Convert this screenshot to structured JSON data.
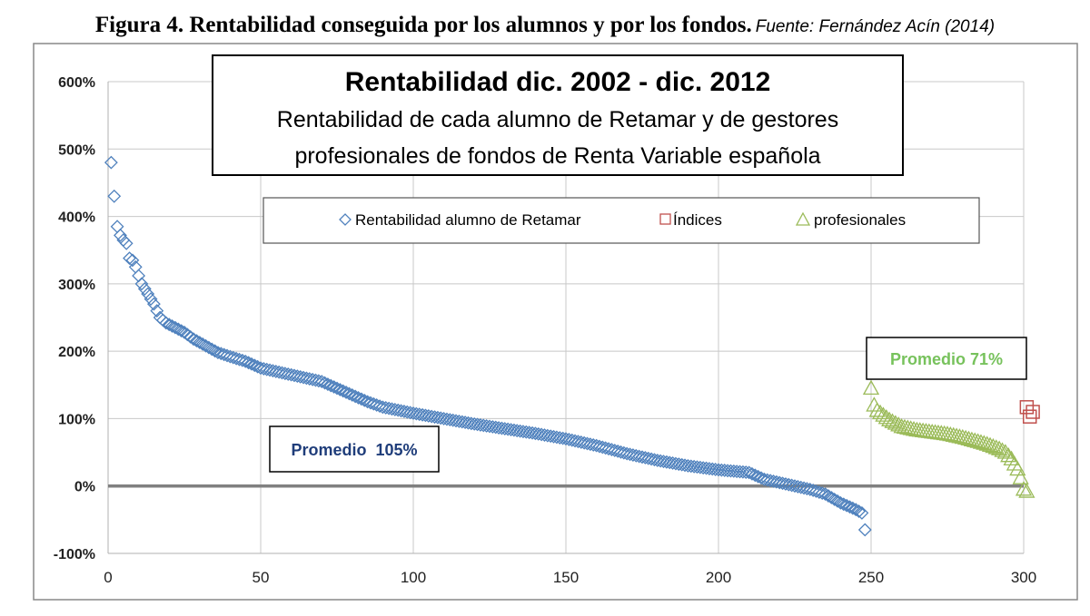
{
  "caption": {
    "figure": "Figura 4. Rentabilidad conseguida por los alumnos y por los fondos.",
    "source": "Fuente: Fernández Acín (2014)"
  },
  "chart_data": {
    "type": "scatter",
    "title": "Rentabilidad dic. 2002 - dic. 2012",
    "subtitle_lines": [
      "Rentabilidad de cada alumno de Retamar y de gestores",
      "profesionales de fondos de Renta Variable española"
    ],
    "xlabel": "",
    "ylabel": "",
    "xlim": [
      0,
      300
    ],
    "ylim": [
      -1,
      6
    ],
    "x_ticks": [
      0,
      50,
      100,
      150,
      200,
      250,
      300
    ],
    "y_ticks": [
      {
        "value": 6,
        "label": "600%"
      },
      {
        "value": 5,
        "label": "500%"
      },
      {
        "value": 4,
        "label": "400%"
      },
      {
        "value": 3,
        "label": "300%"
      },
      {
        "value": 2,
        "label": "200%"
      },
      {
        "value": 1,
        "label": "100%"
      },
      {
        "value": 0,
        "label": "0%"
      },
      {
        "value": -1,
        "label": "-100%"
      }
    ],
    "grid": true,
    "legend_position": "top-center",
    "series": [
      {
        "name": "Rentabilidad alumno de Retamar",
        "marker": "diamond",
        "color": "#4f81bd",
        "x_start": 1,
        "x_end": 248,
        "y_profile": [
          [
            1,
            4.8
          ],
          [
            2,
            4.3
          ],
          [
            3,
            3.85
          ],
          [
            4,
            3.72
          ],
          [
            5,
            3.65
          ],
          [
            6,
            3.6
          ],
          [
            7,
            3.38
          ],
          [
            8,
            3.35
          ],
          [
            9,
            3.25
          ],
          [
            10,
            3.12
          ],
          [
            11,
            3.0
          ],
          [
            13,
            2.85
          ],
          [
            15,
            2.7
          ],
          [
            16,
            2.6
          ],
          [
            17,
            2.5
          ],
          [
            19,
            2.42
          ],
          [
            22,
            2.35
          ],
          [
            25,
            2.28
          ],
          [
            28,
            2.18
          ],
          [
            32,
            2.08
          ],
          [
            36,
            1.98
          ],
          [
            40,
            1.92
          ],
          [
            45,
            1.85
          ],
          [
            50,
            1.75
          ],
          [
            60,
            1.65
          ],
          [
            70,
            1.55
          ],
          [
            80,
            1.35
          ],
          [
            85,
            1.25
          ],
          [
            90,
            1.17
          ],
          [
            100,
            1.08
          ],
          [
            120,
            0.92
          ],
          [
            140,
            0.78
          ],
          [
            150,
            0.7
          ],
          [
            160,
            0.6
          ],
          [
            170,
            0.48
          ],
          [
            180,
            0.38
          ],
          [
            190,
            0.3
          ],
          [
            200,
            0.24
          ],
          [
            210,
            0.2
          ],
          [
            215,
            0.1
          ],
          [
            220,
            0.05
          ],
          [
            225,
            0.0
          ],
          [
            230,
            -0.05
          ],
          [
            235,
            -0.12
          ],
          [
            240,
            -0.25
          ],
          [
            245,
            -0.35
          ],
          [
            247,
            -0.4
          ],
          [
            248,
            -0.65
          ]
        ]
      },
      {
        "name": "Índices",
        "marker": "square",
        "color": "#c0504d",
        "points": [
          [
            301,
            1.17
          ],
          [
            302,
            1.03
          ],
          [
            303,
            1.1
          ]
        ]
      },
      {
        "name": "profesionales",
        "marker": "triangle",
        "color": "#9bbb59",
        "x_start": 250,
        "x_end": 301,
        "y_profile": [
          [
            250,
            1.45
          ],
          [
            251,
            1.2
          ],
          [
            252,
            1.12
          ],
          [
            254,
            1.05
          ],
          [
            256,
            0.98
          ],
          [
            258,
            0.93
          ],
          [
            260,
            0.88
          ],
          [
            265,
            0.83
          ],
          [
            270,
            0.8
          ],
          [
            275,
            0.77
          ],
          [
            280,
            0.72
          ],
          [
            285,
            0.66
          ],
          [
            288,
            0.62
          ],
          [
            292,
            0.55
          ],
          [
            294,
            0.5
          ],
          [
            296,
            0.4
          ],
          [
            298,
            0.25
          ],
          [
            299,
            0.12
          ],
          [
            300,
            -0.05
          ],
          [
            301,
            -0.08
          ]
        ]
      }
    ],
    "annotations": [
      {
        "text": "Promedio  105%",
        "color": "#1f3d7a",
        "series": "Rentabilidad alumno de Retamar"
      },
      {
        "text": "Promedio 71%",
        "color": "#77c25c",
        "series": "profesionales"
      }
    ]
  }
}
